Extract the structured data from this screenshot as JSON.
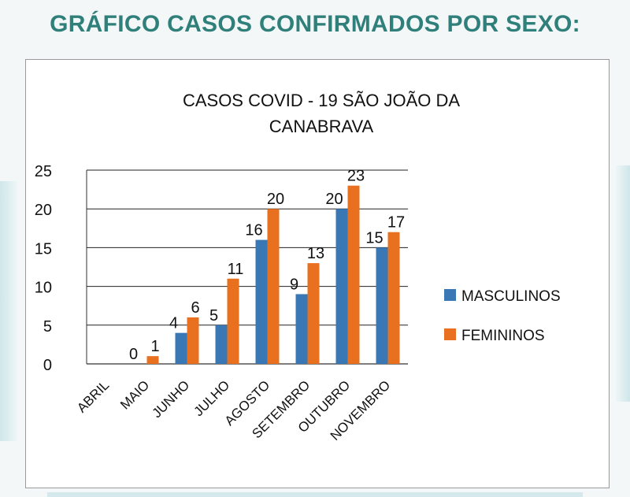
{
  "page": {
    "heading": "GRÁFICO CASOS CONFIRMADOS POR SEXO:"
  },
  "chart_data": {
    "type": "bar",
    "title_lines": [
      "CASOS COVID - 19 SÃO JOÃO DA",
      "CANABRAVA"
    ],
    "categories": [
      "ABRIL",
      "MAIO",
      "JUNHO",
      "JULHO",
      "AGOSTO",
      "SETEMBRO",
      "OUTUBRO",
      "NOVEMBRO"
    ],
    "series": [
      {
        "name": "MASCULINOS",
        "color": "#3a78b5",
        "values": [
          null,
          0,
          4,
          5,
          16,
          9,
          20,
          15
        ]
      },
      {
        "name": "FEMININOS",
        "color": "#e8701f",
        "values": [
          null,
          1,
          6,
          11,
          20,
          13,
          23,
          17
        ]
      }
    ],
    "ylim": [
      0,
      25
    ],
    "yticks": [
      0,
      5,
      10,
      15,
      20,
      25
    ],
    "grid": true,
    "legend_position": "right"
  }
}
